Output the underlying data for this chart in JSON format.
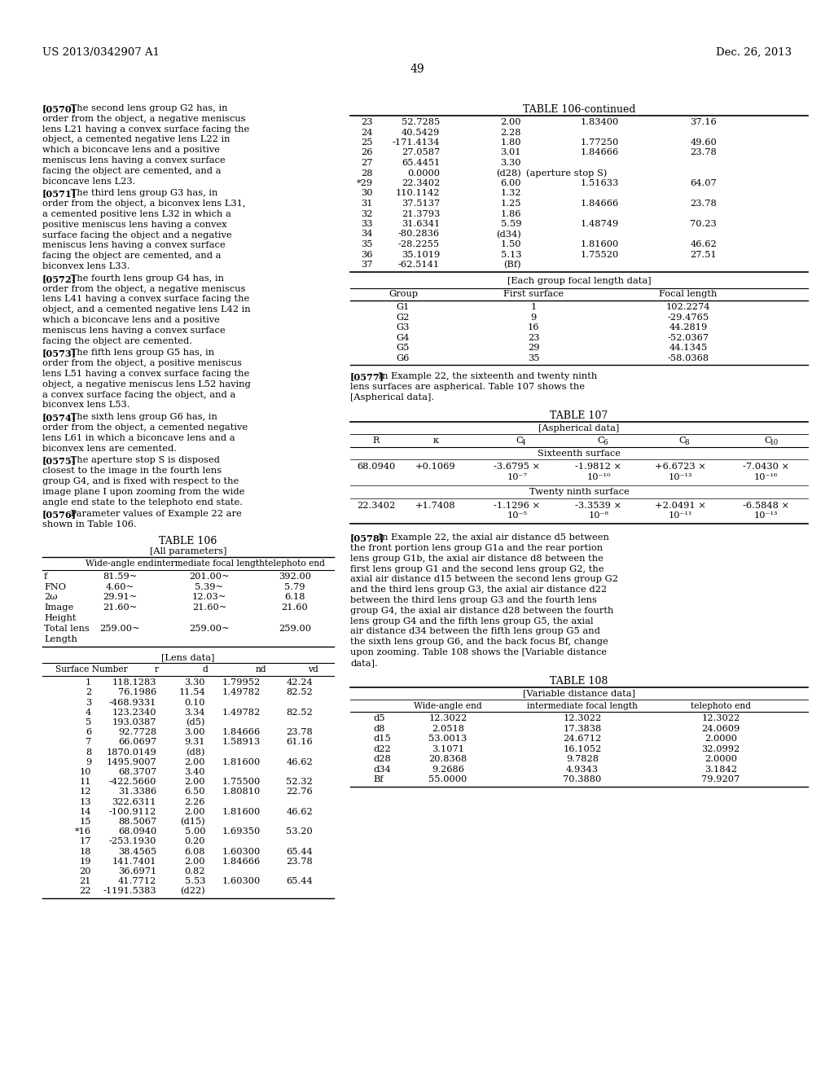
{
  "page_header_left": "US 2013/0342907 A1",
  "page_header_right": "Dec. 26, 2013",
  "page_number": "49",
  "background_color": "#ffffff",
  "paragraphs": [
    {
      "tag": "[0570]",
      "text": "The second lens group G2 has, in order from the object, a negative meniscus lens L21 having a convex surface facing the object, a cemented negative lens L22 in which a biconcave lens and a positive meniscus lens having a convex surface facing the object are cemented, and a biconcave lens L23."
    },
    {
      "tag": "[0571]",
      "text": "The third lens group G3 has, in order from the object, a biconvex lens L31, a cemented positive lens L32 in which a positive meniscus lens having a convex surface facing the object and a negative meniscus lens having a convex surface facing the object are cemented, and a biconvex lens L33."
    },
    {
      "tag": "[0572]",
      "text": "The fourth lens group G4 has, in order from the object, a negative meniscus lens L41 having a convex surface facing the object, and a cemented negative lens L42 in which a biconcave lens and a positive meniscus lens having a convex surface facing the object are cemented."
    },
    {
      "tag": "[0573]",
      "text": "The fifth lens group G5 has, in order from the object, a positive meniscus lens L51 having a convex surface facing the object, a negative meniscus lens L52 having a convex surface facing the object, and a biconvex lens L53."
    },
    {
      "tag": "[0574]",
      "text": "The sixth lens group G6 has, in order from the object, a cemented negative lens L61 in which a biconcave lens and a biconvex lens are cemented."
    },
    {
      "tag": "[0575]",
      "text": "The aperture stop S is disposed closest to the image in the fourth lens group G4, and is fixed with respect to the image plane I upon zooming from the wide angle end state to the telephoto end state."
    },
    {
      "tag": "[0576]",
      "text": "Parameter values of Example 22 are shown in Table 106."
    }
  ],
  "table106_title": "TABLE 106",
  "table106_subtitle": "[All parameters]",
  "table106_params_header": [
    "",
    "Wide-angle end",
    "intermediate focal length",
    "telephoto end"
  ],
  "table106_params": [
    [
      "f",
      "81.59~",
      "201.00~",
      "392.00"
    ],
    [
      "FNO",
      "4.60~",
      "5.39~",
      "5.79"
    ],
    [
      "2ω",
      "29.91~",
      "12.03~",
      "6.18"
    ],
    [
      "Image\nHeight",
      "21.60~",
      "21.60~",
      "21.60"
    ],
    [
      "Total lens\nLength",
      "259.00~",
      "259.00~",
      "259.00"
    ]
  ],
  "table106_lens_subtitle": "[Lens data]",
  "table106_lens_header": [
    "Surface Number",
    "r",
    "d",
    "nd",
    "vd"
  ],
  "table106_lens_data": [
    [
      "1",
      "118.1283",
      "3.30",
      "1.79952",
      "42.24"
    ],
    [
      "2",
      "76.1986",
      "11.54",
      "1.49782",
      "82.52"
    ],
    [
      "3",
      "-468.9331",
      "0.10",
      "",
      ""
    ],
    [
      "4",
      "123.2340",
      "3.34",
      "1.49782",
      "82.52"
    ],
    [
      "5",
      "193.0387",
      "(d5)",
      "",
      ""
    ],
    [
      "6",
      "92.7728",
      "3.00",
      "1.84666",
      "23.78"
    ],
    [
      "7",
      "66.0697",
      "9.31",
      "1.58913",
      "61.16"
    ],
    [
      "8",
      "1870.0149",
      "(d8)",
      "",
      ""
    ],
    [
      "9",
      "1495.9007",
      "2.00",
      "1.81600",
      "46.62"
    ],
    [
      "10",
      "68.3707",
      "3.40",
      "",
      ""
    ],
    [
      "11",
      "-422.5660",
      "2.00",
      "1.75500",
      "52.32"
    ],
    [
      "12",
      "31.3386",
      "6.50",
      "1.80810",
      "22.76"
    ],
    [
      "13",
      "322.6311",
      "2.26",
      "",
      ""
    ],
    [
      "14",
      "-100.9112",
      "2.00",
      "1.81600",
      "46.62"
    ],
    [
      "15",
      "88.5067",
      "(d15)",
      "",
      ""
    ],
    [
      "*16",
      "68.0940",
      "5.00",
      "1.69350",
      "53.20"
    ],
    [
      "17",
      "-253.1930",
      "0.20",
      "",
      ""
    ],
    [
      "18",
      "38.4565",
      "6.08",
      "1.60300",
      "65.44"
    ],
    [
      "19",
      "141.7401",
      "2.00",
      "1.84666",
      "23.78"
    ],
    [
      "20",
      "36.6971",
      "0.82",
      "",
      ""
    ],
    [
      "21",
      "41.7712",
      "5.53",
      "1.60300",
      "65.44"
    ],
    [
      "22",
      "-1191.5383",
      "(d22)",
      "",
      ""
    ]
  ],
  "table106_continued_title": "TABLE 106-continued",
  "table106_continued_data": [
    [
      "23",
      "52.7285",
      "2.00",
      "1.83400",
      "37.16"
    ],
    [
      "24",
      "40.5429",
      "2.28",
      "",
      ""
    ],
    [
      "25",
      "-171.4134",
      "1.80",
      "1.77250",
      "49.60"
    ],
    [
      "26",
      "27.0587",
      "3.01",
      "1.84666",
      "23.78"
    ],
    [
      "27",
      "65.4451",
      "3.30",
      "",
      ""
    ],
    [
      "28",
      "0.0000",
      "(d28)",
      "(aperture stop S)",
      ""
    ],
    [
      "*29",
      "22.3402",
      "6.00",
      "1.51633",
      "64.07"
    ],
    [
      "30",
      "110.1142",
      "1.32",
      "",
      ""
    ],
    [
      "31",
      "37.5137",
      "1.25",
      "1.84666",
      "23.78"
    ],
    [
      "32",
      "21.3793",
      "1.86",
      "",
      ""
    ],
    [
      "33",
      "31.6341",
      "5.59",
      "1.48749",
      "70.23"
    ],
    [
      "34",
      "-80.2836",
      "(d34)",
      "",
      ""
    ],
    [
      "35",
      "-28.2255",
      "1.50",
      "1.81600",
      "46.62"
    ],
    [
      "36",
      "35.1019",
      "5.13",
      "1.75520",
      "27.51"
    ],
    [
      "37",
      "-62.5141",
      "(Bf)",
      "",
      ""
    ]
  ],
  "focal_length_title": "[Each group focal length data]",
  "focal_length_header": [
    "Group",
    "First surface",
    "Focal length"
  ],
  "focal_length_data": [
    [
      "G1",
      "1",
      "102.2274"
    ],
    [
      "G2",
      "9",
      "-29.4765"
    ],
    [
      "G3",
      "16",
      "44.2819"
    ],
    [
      "G4",
      "23",
      "-52.0367"
    ],
    [
      "G5",
      "29",
      "44.1345"
    ],
    [
      "G6",
      "35",
      "-58.0368"
    ]
  ],
  "para0577_tag": "[0577]",
  "para0577_text": "In Example 22, the sixteenth and twenty ninth lens surfaces are aspherical. Table 107 shows the [Aspherical data].",
  "table107_title": "TABLE 107",
  "table107_subtitle": "[Aspherical data]",
  "table107_col_headers": [
    "R",
    "k",
    "C4",
    "C6",
    "C8",
    "C10"
  ],
  "table107_section1": "Sixteenth surface",
  "table107_row1_line1": [
    "68.0940",
    "+0.1069",
    "-3.6795 ×",
    "-1.9812 ×",
    "+6.6723 ×",
    "-7.0430 ×"
  ],
  "table107_row1_line2": [
    "",
    "",
    "10⁻⁷",
    "10⁻¹⁰",
    "10⁻¹³",
    "10⁻¹⁶"
  ],
  "table107_section2": "Twenty ninth surface",
  "table107_row2_line1": [
    "22.3402",
    "+1.7408",
    "-1.1296 ×",
    "-3.3539 ×",
    "+2.0491 ×",
    "-6.5848 ×"
  ],
  "table107_row2_line2": [
    "",
    "",
    "10⁻⁵",
    "10⁻⁸",
    "10⁻¹¹",
    "10⁻¹³"
  ],
  "para0578_tag": "[0578]",
  "para0578_text": "In Example 22, the axial air distance d5 between the front portion lens group G1a and the rear portion lens group G1b, the axial air distance d8 between the first lens group G1 and the second lens group G2, the axial air distance d15 between the second lens group G2 and the third lens group G3, the axial air distance d22 between the third lens group G3 and the fourth lens group G4, the axial air distance d28 between the fourth lens group G4 and the fifth lens group G5, the axial air distance d34 between the fifth lens group G5 and the sixth lens group G6, and the back focus Bf, change upon zooming. Table 108 shows the [Variable distance data].",
  "table108_title": "TABLE 108",
  "table108_subtitle": "[Variable distance data]",
  "table108_header": [
    "",
    "Wide-angle end",
    "intermediate focal length",
    "telephoto end"
  ],
  "table108_data": [
    [
      "d5",
      "12.3022",
      "12.3022",
      "12.3022"
    ],
    [
      "d8",
      "2.0518",
      "17.3838",
      "24.0609"
    ],
    [
      "d15",
      "53.0013",
      "24.6712",
      "2.0000"
    ],
    [
      "d22",
      "3.1071",
      "16.1052",
      "32.0992"
    ],
    [
      "d28",
      "20.8368",
      "9.7828",
      "2.0000"
    ],
    [
      "d34",
      "9.2686",
      "4.9343",
      "3.1842"
    ],
    [
      "Bf",
      "55.0000",
      "70.3880",
      "79.9207"
    ]
  ]
}
